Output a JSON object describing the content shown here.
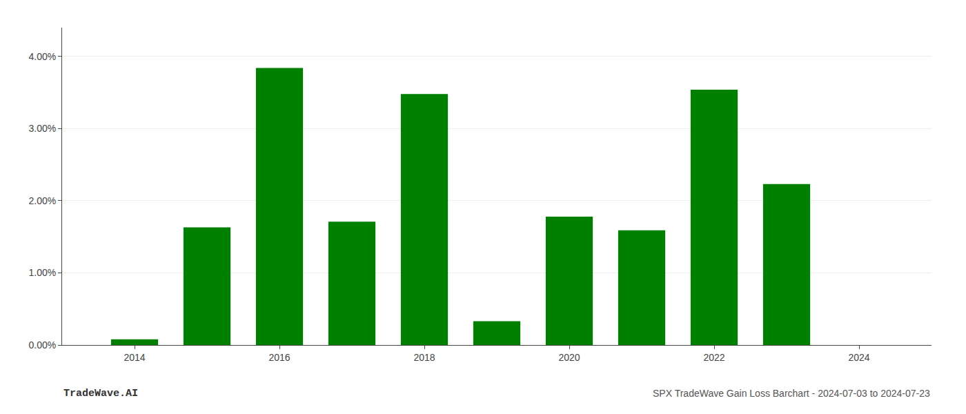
{
  "chart_data": {
    "type": "bar",
    "x": [
      2014,
      2015,
      2016,
      2017,
      2018,
      2019,
      2020,
      2021,
      2022,
      2023,
      2024
    ],
    "values": [
      0.08,
      1.63,
      3.84,
      1.71,
      3.48,
      0.33,
      1.78,
      1.59,
      3.54,
      2.23,
      0.0
    ],
    "color": "#008000",
    "xlim": [
      2013.0,
      2025.0
    ],
    "xticks": [
      2014,
      2016,
      2018,
      2020,
      2022,
      2024
    ],
    "ylim": [
      0.0,
      4.4
    ],
    "yticks": [
      {
        "value": 0.0,
        "label": "0.00%"
      },
      {
        "value": 1.0,
        "label": "1.00%"
      },
      {
        "value": 2.0,
        "label": "2.00%"
      },
      {
        "value": 3.0,
        "label": "3.00%"
      },
      {
        "value": 4.0,
        "label": "4.00%"
      }
    ],
    "grid": true,
    "annotations": [
      "TradeWave.AI",
      "SPX TradeWave Gain Loss Barchart - 2024-07-03 to 2024-07-23"
    ]
  }
}
